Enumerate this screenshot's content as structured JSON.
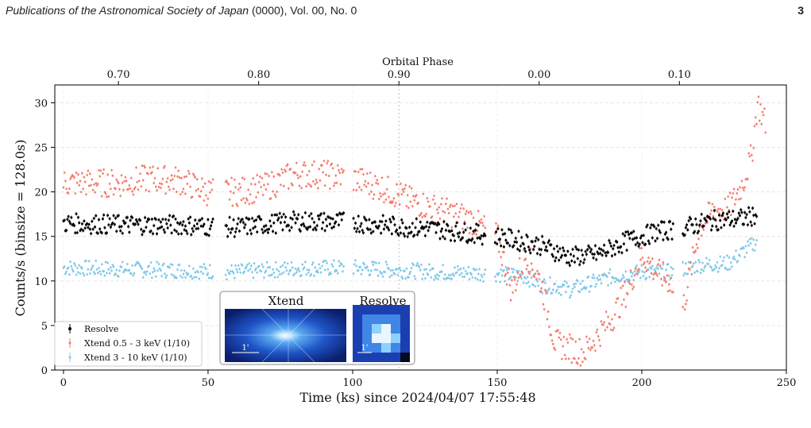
{
  "header": {
    "journal": "Publications of the Astronomical Society of Japan",
    "details": " (0000), Vol. 00, No. 0",
    "page_number": "3"
  },
  "colors": {
    "resolve": "#000000",
    "xtend_soft": "#f47c6c",
    "xtend_hard": "#7ec8e8",
    "inset_bg": "#0a1a4a"
  },
  "chart_data": {
    "type": "scatter",
    "xlabel": "Time (ks) since 2024/04/07 17:55:48",
    "ylabel": "Counts/s (binsize = 128.0s)",
    "xlim": [
      -3,
      250
    ],
    "ylim": [
      0,
      32
    ],
    "x_ticks": [
      0,
      50,
      100,
      150,
      200,
      250
    ],
    "y_ticks": [
      0,
      5,
      10,
      15,
      20,
      25,
      30
    ],
    "grid": true,
    "top_axis": {
      "label": "Orbital Phase",
      "ticks": [
        {
          "label": "0.70",
          "time": 19
        },
        {
          "label": "0.80",
          "time": 67.5
        },
        {
          "label": "0.90",
          "time": 116
        },
        {
          "label": "0.00",
          "time": 164.5
        },
        {
          "label": "0.10",
          "time": 213
        }
      ]
    },
    "phase_marker_time": 116,
    "legend": {
      "placement": "lower-left",
      "entries": [
        "Resolve",
        "Xtend 0.5 - 3 keV (1/10)",
        "Xtend  3 - 10 keV (1/10)"
      ]
    },
    "series": [
      {
        "name": "Resolve",
        "color": "#000000",
        "x": [
          0,
          20,
          40,
          60,
          80,
          100,
          116,
          130,
          150,
          165,
          175,
          185,
          195,
          205,
          215,
          225,
          235,
          240
        ],
        "y": [
          16.5,
          16.3,
          16.3,
          16.0,
          16.7,
          16.6,
          16.1,
          15.8,
          15.0,
          14.0,
          12.7,
          13.0,
          14.5,
          15.5,
          16.0,
          16.8,
          17.0,
          17.5
        ]
      },
      {
        "name": "Xtend 0.5 - 3 keV (1/10)",
        "color": "#f47c6c",
        "x": [
          0,
          10,
          20,
          30,
          40,
          50,
          60,
          70,
          80,
          90,
          100,
          110,
          120,
          130,
          140,
          150,
          155,
          160,
          165,
          170,
          175,
          180,
          185,
          190,
          195,
          200,
          205,
          210,
          213,
          220,
          225,
          230,
          235,
          238,
          240,
          243
        ],
        "y": [
          21.0,
          21.0,
          21.0,
          21.5,
          21.3,
          20.0,
          20.0,
          20.5,
          22.0,
          22.0,
          21.5,
          20.5,
          19.0,
          18.0,
          17.0,
          15.0,
          9.0,
          13.0,
          10.0,
          3.0,
          2.5,
          2.0,
          4.0,
          6.0,
          9.0,
          13.0,
          11.0,
          10.0,
          5.0,
          16.0,
          18.0,
          18.0,
          21.0,
          24.0,
          30.0,
          27.5
        ]
      },
      {
        "name": "Xtend  3 - 10 keV (1/10)",
        "color": "#7ec8e8",
        "x": [
          0,
          20,
          40,
          60,
          80,
          100,
          116,
          130,
          150,
          160,
          165,
          170,
          175,
          180,
          185,
          190,
          200,
          210,
          220,
          230,
          240
        ],
        "y": [
          11.5,
          11.3,
          11.2,
          11.0,
          11.4,
          11.5,
          11.2,
          11.0,
          10.8,
          10.5,
          9.5,
          9.5,
          9.0,
          9.5,
          10.0,
          10.5,
          11.0,
          11.0,
          11.8,
          12.0,
          14.5
        ]
      }
    ]
  },
  "inset": {
    "xtend_title": "Xtend",
    "resolve_title": "Resolve",
    "xtend_scale": "1'",
    "resolve_scale": "1'"
  }
}
